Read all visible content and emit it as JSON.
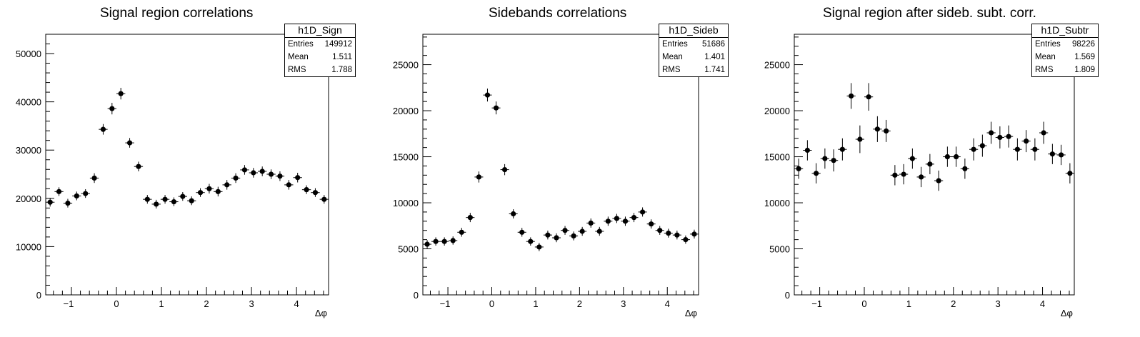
{
  "chart_data": [
    {
      "type": "scatter",
      "title": "Signal region correlations",
      "xlabel": "Δφ",
      "ylabel": "",
      "xlim": [
        -1.5708,
        4.7124
      ],
      "ylim": [
        0,
        54000
      ],
      "xticks": [
        -1,
        0,
        1,
        2,
        3,
        4
      ],
      "yticks": [
        0,
        10000,
        20000,
        30000,
        40000,
        50000
      ],
      "stats": {
        "name": "h1D_Sign",
        "rows": [
          [
            "Entries",
            "149912"
          ],
          [
            "Mean",
            "1.511"
          ],
          [
            "RMS",
            "1.788"
          ]
        ]
      },
      "series": [
        {
          "x": [
            -1.4726,
            -1.2763,
            -1.0799,
            -0.8836,
            -0.6872,
            -0.4909,
            -0.2945,
            -0.0982,
            0.0982,
            0.2945,
            0.4909,
            0.6872,
            0.8836,
            1.0799,
            1.2763,
            1.4726,
            1.669,
            1.8653,
            2.0617,
            2.258,
            2.4544,
            2.6507,
            2.8471,
            3.0434,
            3.2398,
            3.4361,
            3.6325,
            3.8288,
            4.0252,
            4.2215,
            4.4179,
            4.6142
          ],
          "y": [
            19200,
            21400,
            19000,
            20500,
            21000,
            24200,
            34300,
            38600,
            41700,
            31500,
            26600,
            19800,
            18800,
            19800,
            19300,
            20400,
            19500,
            21200,
            22000,
            21400,
            22800,
            24200,
            25900,
            25300,
            25600,
            25000,
            24600,
            22800,
            24300,
            21800,
            21200,
            19800
          ],
          "err": [
            900,
            900,
            900,
            900,
            900,
            1000,
            1100,
            1200,
            1200,
            1000,
            1000,
            900,
            900,
            900,
            900,
            900,
            900,
            900,
            1000,
            1000,
            1000,
            1000,
            1000,
            1000,
            1000,
            1000,
            1000,
            1000,
            1000,
            900,
            900,
            900
          ]
        }
      ]
    },
    {
      "type": "scatter",
      "title": "Sidebands correlations",
      "xlabel": "Δφ",
      "ylabel": "",
      "xlim": [
        -1.5708,
        4.7124
      ],
      "ylim": [
        0,
        28300
      ],
      "xticks": [
        -1,
        0,
        1,
        2,
        3,
        4
      ],
      "yticks": [
        0,
        5000,
        10000,
        15000,
        20000,
        25000
      ],
      "stats": {
        "name": "h1D_Sideb",
        "rows": [
          [
            "Entries",
            "51686"
          ],
          [
            "Mean",
            "1.401"
          ],
          [
            "RMS",
            "1.741"
          ]
        ]
      },
      "series": [
        {
          "x": [
            -1.4726,
            -1.2763,
            -1.0799,
            -0.8836,
            -0.6872,
            -0.4909,
            -0.2945,
            -0.0982,
            0.0982,
            0.2945,
            0.4909,
            0.6872,
            0.8836,
            1.0799,
            1.2763,
            1.4726,
            1.669,
            1.8653,
            2.0617,
            2.258,
            2.4544,
            2.6507,
            2.8471,
            3.0434,
            3.2398,
            3.4361,
            3.6325,
            3.8288,
            4.0252,
            4.2215,
            4.4179,
            4.6142
          ],
          "y": [
            5500,
            5800,
            5800,
            5900,
            6800,
            8400,
            12800,
            21700,
            20300,
            13600,
            8800,
            6800,
            5800,
            5200,
            6500,
            6200,
            7000,
            6400,
            6900,
            7800,
            6900,
            8000,
            8300,
            8000,
            8400,
            9000,
            7700,
            7000,
            6700,
            6500,
            6000,
            6600
          ],
          "err": [
            450,
            450,
            450,
            450,
            480,
            500,
            600,
            700,
            700,
            600,
            500,
            480,
            450,
            450,
            480,
            480,
            480,
            480,
            480,
            500,
            480,
            500,
            500,
            500,
            500,
            500,
            500,
            480,
            480,
            480,
            450,
            480
          ]
        }
      ]
    },
    {
      "type": "scatter",
      "title": "Signal region after sideb. subt. corr.",
      "xlabel": "Δφ",
      "ylabel": "",
      "xlim": [
        -1.5708,
        4.7124
      ],
      "ylim": [
        0,
        28300
      ],
      "xticks": [
        -1,
        0,
        1,
        2,
        3,
        4
      ],
      "yticks": [
        0,
        5000,
        10000,
        15000,
        20000,
        25000
      ],
      "stats": {
        "name": "h1D_Subtr",
        "rows": [
          [
            "Entries",
            "98226"
          ],
          [
            "Mean",
            "1.569"
          ],
          [
            "RMS",
            "1.809"
          ]
        ]
      },
      "series": [
        {
          "x": [
            -1.4726,
            -1.2763,
            -1.0799,
            -0.8836,
            -0.6872,
            -0.4909,
            -0.2945,
            -0.0982,
            0.0982,
            0.2945,
            0.4909,
            0.6872,
            0.8836,
            1.0799,
            1.2763,
            1.4726,
            1.669,
            1.8653,
            2.0617,
            2.258,
            2.4544,
            2.6507,
            2.8471,
            3.0434,
            3.2398,
            3.4361,
            3.6325,
            3.8288,
            4.0252,
            4.2215,
            4.4179,
            4.6142
          ],
          "y": [
            13700,
            15700,
            13200,
            14800,
            14600,
            15800,
            21600,
            16900,
            21500,
            18000,
            17800,
            13000,
            13100,
            14800,
            12800,
            14200,
            12400,
            15000,
            15000,
            13700,
            15800,
            16200,
            17600,
            17100,
            17200,
            15800,
            16700,
            15800,
            17600,
            15300,
            15200,
            13200
          ],
          "err": [
            1100,
            1100,
            1100,
            1100,
            1200,
            1200,
            1400,
            1500,
            1500,
            1400,
            1200,
            1100,
            1100,
            1100,
            1100,
            1100,
            1100,
            1100,
            1100,
            1100,
            1200,
            1200,
            1200,
            1200,
            1200,
            1200,
            1200,
            1200,
            1200,
            1100,
            1100,
            1100
          ]
        }
      ]
    }
  ]
}
